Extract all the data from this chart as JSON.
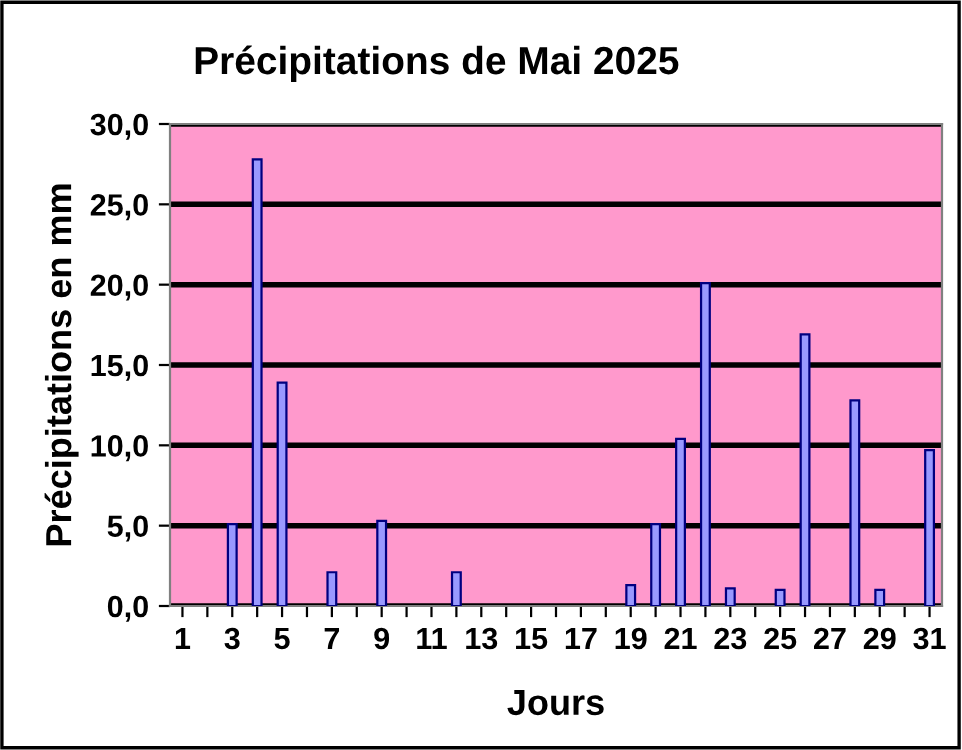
{
  "chart_data": {
    "type": "bar",
    "title": "Précipitations de Mai 2025",
    "xlabel": "Jours",
    "ylabel": "Précipitations en mm",
    "categories": [
      "1",
      null,
      "3",
      null,
      "5",
      null,
      "7",
      null,
      "9",
      null,
      "11",
      null,
      "13",
      null,
      "15",
      null,
      "17",
      null,
      "19",
      null,
      "21",
      null,
      "23",
      null,
      "25",
      null,
      "27",
      null,
      "29",
      null,
      "31"
    ],
    "values": [
      null,
      null,
      5.1,
      27.8,
      13.9,
      null,
      2.1,
      null,
      5.3,
      null,
      null,
      2.1,
      null,
      null,
      null,
      null,
      null,
      null,
      1.3,
      5.1,
      10.4,
      20.1,
      1.1,
      null,
      1.0,
      16.9,
      null,
      12.8,
      1.0,
      null,
      9.7
    ],
    "color": "#9999ff",
    "ylim": [
      0,
      30
    ],
    "yticks": [
      {
        "value": 0,
        "label": "0,0"
      },
      {
        "value": 5,
        "label": "5,0"
      },
      {
        "value": 10,
        "label": "10,0"
      },
      {
        "value": 15,
        "label": "15,0"
      },
      {
        "value": 20,
        "label": "20,0"
      },
      {
        "value": 25,
        "label": "25,0"
      },
      {
        "value": 30,
        "label": "30,0"
      }
    ],
    "grid": "y",
    "legend": false
  }
}
